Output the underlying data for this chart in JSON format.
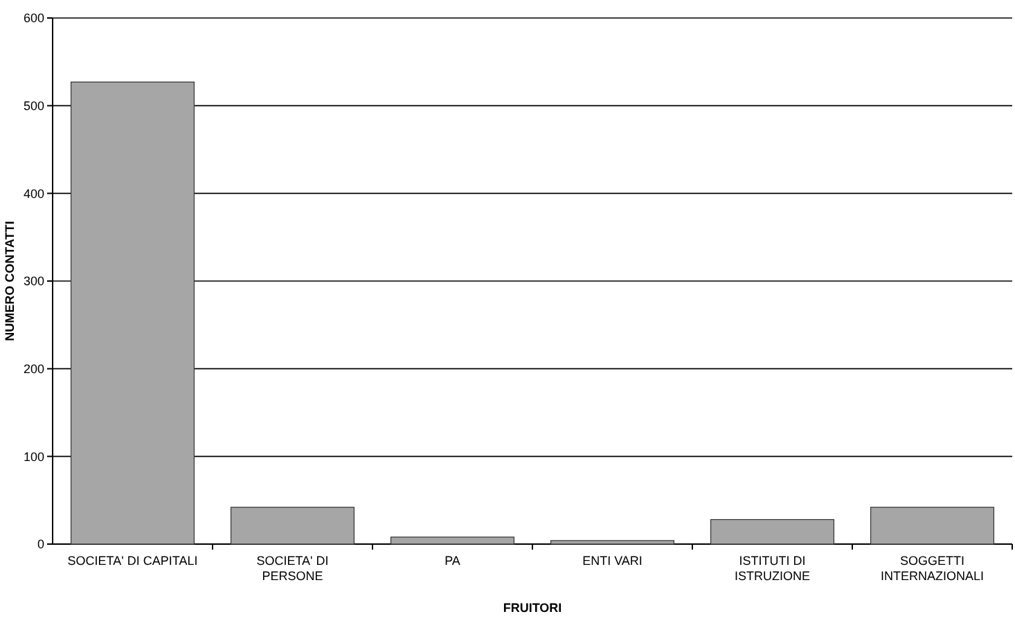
{
  "chart_data": {
    "type": "bar",
    "xlabel": "FRUITORI",
    "ylabel": "NUMERO CONTATTI",
    "categories": [
      "SOCIETA' DI CAPITALI",
      "SOCIETA' DI\nPERSONE",
      "PA",
      "ENTI VARI",
      "ISTITUTI DI\nISTRUZIONE",
      "SOGGETTI\nINTERNAZIONALI"
    ],
    "values": [
      527,
      42,
      8,
      4,
      28,
      42
    ],
    "color": "#a6a6a6",
    "ylim": [
      0,
      600
    ],
    "yticks": [
      0,
      100,
      200,
      300,
      400,
      500,
      600
    ],
    "grid": "y"
  }
}
